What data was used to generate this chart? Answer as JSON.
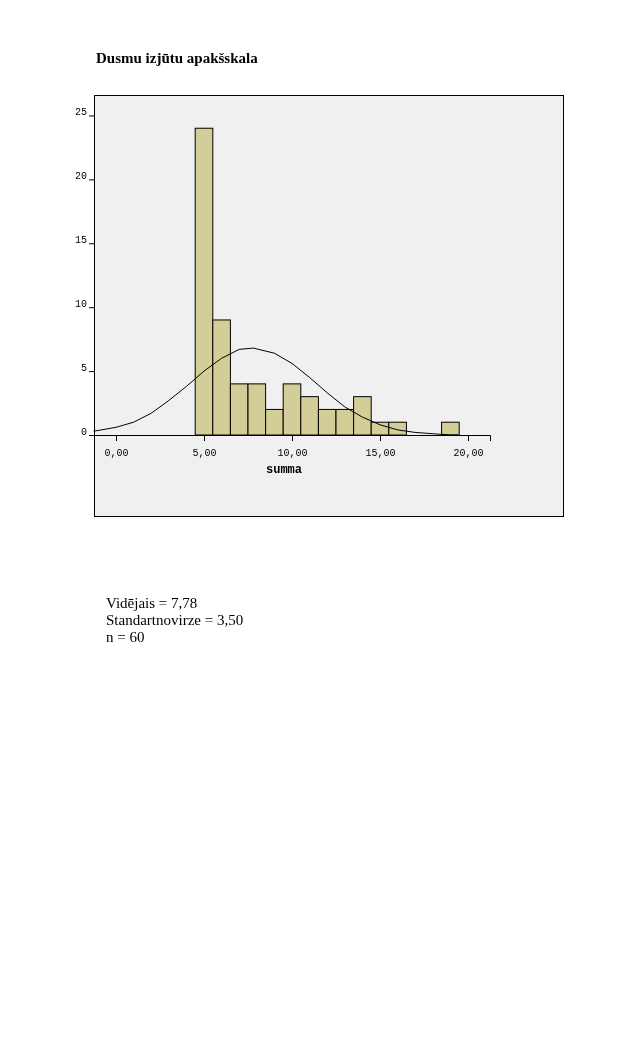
{
  "chart_data": {
    "type": "histogram",
    "title": "Dusmu izjūtu apakšskala",
    "xlabel": "summa",
    "series": [
      {
        "color": "#d3ce98",
        "bins": [
          4.5,
          5.5,
          6.5,
          7.5,
          8.5,
          9.5,
          10.5,
          11.5,
          12.5,
          13.5,
          14.5,
          15.5,
          16.5,
          17.5,
          18.5,
          19.5
        ],
        "values": [
          24,
          9,
          4,
          4,
          2,
          4,
          3,
          2,
          2,
          3,
          1,
          1,
          0,
          0,
          1
        ]
      },
      {
        "type": "line",
        "color": "#000000",
        "x": [
          -1.25,
          0,
          1,
          2,
          3,
          4,
          5,
          6,
          7,
          7.8,
          9,
          10,
          11,
          12,
          13,
          14,
          15,
          16,
          17,
          18,
          19,
          19.4
        ],
        "values": [
          0.3,
          0.6,
          1.0,
          1.7,
          2.7,
          3.8,
          5.0,
          6.0,
          6.7,
          6.8,
          6.4,
          5.6,
          4.5,
          3.3,
          2.2,
          1.4,
          0.8,
          0.4,
          0.2,
          0.1,
          0.0,
          0.0
        ]
      }
    ],
    "xlim": [
      -1.25,
      21.25
    ],
    "ylim": [
      0,
      26.6
    ],
    "xticks": [
      {
        "value": 0,
        "label": "0,00"
      },
      {
        "value": 5,
        "label": "5,00"
      },
      {
        "value": 10,
        "label": "10,00"
      },
      {
        "value": 15,
        "label": "15,00"
      },
      {
        "value": 20,
        "label": "20,00"
      }
    ],
    "yticks": [
      0,
      5,
      10,
      15,
      20,
      25
    ],
    "grid": false,
    "annotations": [
      "Vidējais = 7,78",
      "Standartnovirze = 3,50",
      "n = 60"
    ]
  }
}
